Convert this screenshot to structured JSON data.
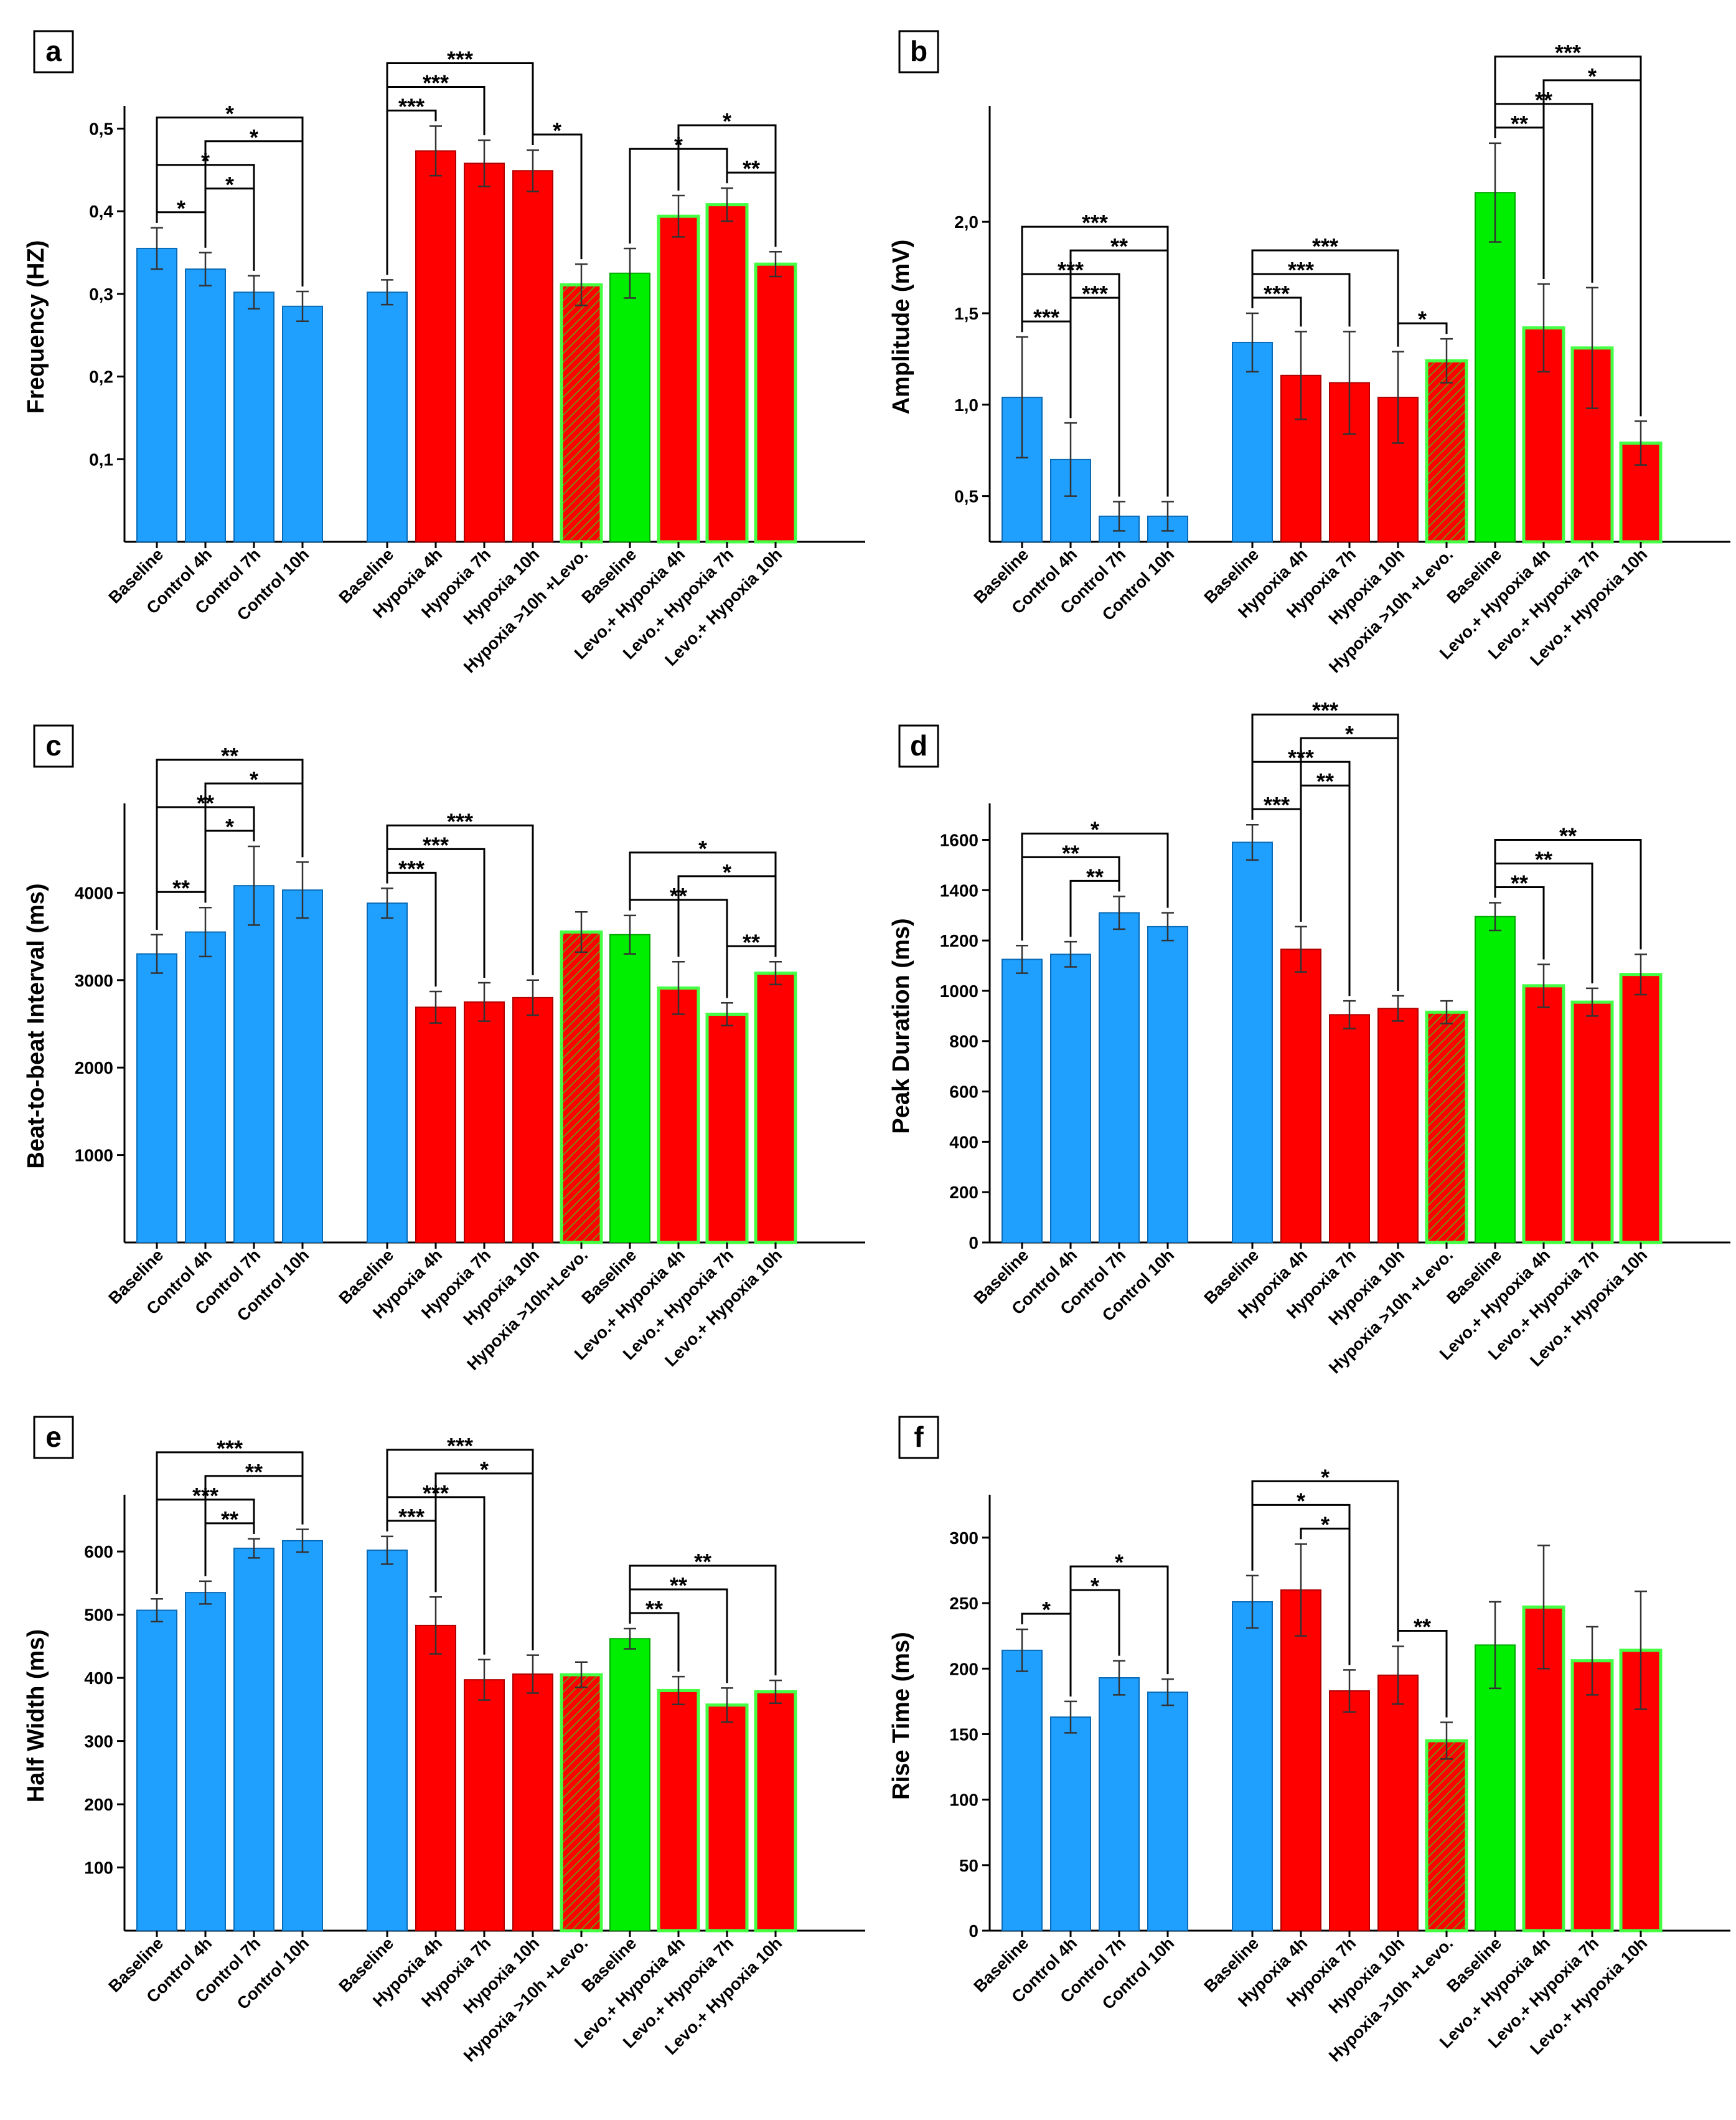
{
  "colors": {
    "control": "#1fa0ff",
    "hypoxia": "#ff0000",
    "levo_baseline": "#00ee00",
    "levo_outline": "#44ff44",
    "hatch": "#7a8a10",
    "axis": "#000000",
    "background": "#ffffff"
  },
  "chart_data": [
    {
      "panel": "a",
      "type": "bar",
      "ylabel": "Frequency (HZ)",
      "ylim": [
        0.0,
        0.52
      ],
      "yticks": [
        0.1,
        0.2,
        0.3,
        0.4,
        0.5
      ],
      "ytick_labels": [
        "0,1",
        "0,2",
        "0,3",
        "0,4",
        "0,5"
      ],
      "categories": [
        "Baseline",
        "Control 4h",
        "Control 7h",
        "Control 10h",
        "Baseline",
        "Hypoxia 4h",
        "Hypoxia 7h",
        "Hypoxia 10h",
        "Hypoxia >10h +Levo.",
        "Baseline",
        "Levo.+ Hypoxia 4h",
        "Levo.+ Hypoxia 7h",
        "Levo.+ Hypoxia 10h"
      ],
      "values": [
        0.355,
        0.33,
        0.302,
        0.285,
        0.302,
        0.473,
        0.458,
        0.449,
        0.311,
        0.325,
        0.394,
        0.408,
        0.336
      ],
      "errors": [
        0.025,
        0.02,
        0.02,
        0.018,
        0.015,
        0.03,
        0.028,
        0.025,
        0.025,
        0.03,
        0.025,
        0.02,
        0.015
      ],
      "brackets": [
        {
          "from": 0,
          "to": 1,
          "stars": "*"
        },
        {
          "from": 0,
          "to": 2,
          "stars": "*"
        },
        {
          "from": 0,
          "to": 3,
          "stars": "*"
        },
        {
          "from": 1,
          "to": 2,
          "stars": "*"
        },
        {
          "from": 1,
          "to": 3,
          "stars": "*"
        },
        {
          "from": 4,
          "to": 5,
          "stars": "***"
        },
        {
          "from": 4,
          "to": 6,
          "stars": "***"
        },
        {
          "from": 4,
          "to": 7,
          "stars": "***"
        },
        {
          "from": 7,
          "to": 8,
          "stars": "*"
        },
        {
          "from": 9,
          "to": 11,
          "stars": "*"
        },
        {
          "from": 10,
          "to": 12,
          "stars": "*"
        },
        {
          "from": 11,
          "to": 12,
          "stars": "**"
        }
      ]
    },
    {
      "panel": "b",
      "type": "bar",
      "ylabel": "Amplitude (mV)",
      "ylim": [
        0.25,
        2.6
      ],
      "yticks": [
        0.5,
        1.0,
        1.5,
        2.0
      ],
      "ytick_labels": [
        "0,5",
        "1,0",
        "1,5",
        "2,0"
      ],
      "categories": [
        "Baseline",
        "Control 4h",
        "Control 7h",
        "Control 10h",
        "Baseline",
        "Hypoxia 4h",
        "Hypoxia 7h",
        "Hypoxia 10h",
        "Hypoxia >10h +Levo.",
        "Baseline",
        "Levo.+ Hypoxia 4h",
        "Levo.+ Hypoxia 7h",
        "Levo.+ Hypoxia 10h"
      ],
      "values": [
        1.04,
        0.7,
        0.39,
        0.39,
        1.34,
        1.16,
        1.12,
        1.04,
        1.24,
        2.16,
        1.42,
        1.31,
        0.79
      ],
      "errors": [
        0.33,
        0.2,
        0.08,
        0.08,
        0.16,
        0.24,
        0.28,
        0.25,
        0.12,
        0.27,
        0.24,
        0.33,
        0.12
      ],
      "brackets": [
        {
          "from": 0,
          "to": 1,
          "stars": "***"
        },
        {
          "from": 0,
          "to": 2,
          "stars": "***"
        },
        {
          "from": 0,
          "to": 3,
          "stars": "***"
        },
        {
          "from": 1,
          "to": 2,
          "stars": "***"
        },
        {
          "from": 1,
          "to": 3,
          "stars": "**"
        },
        {
          "from": 4,
          "to": 5,
          "stars": "***"
        },
        {
          "from": 4,
          "to": 6,
          "stars": "***"
        },
        {
          "from": 4,
          "to": 7,
          "stars": "***"
        },
        {
          "from": 7,
          "to": 8,
          "stars": "*"
        },
        {
          "from": 9,
          "to": 10,
          "stars": "**"
        },
        {
          "from": 9,
          "to": 11,
          "stars": "**"
        },
        {
          "from": 9,
          "to": 12,
          "stars": "***"
        },
        {
          "from": 10,
          "to": 12,
          "stars": "*"
        }
      ]
    },
    {
      "panel": "c",
      "type": "bar",
      "ylabel": "Beat-to-beat Interval (ms)",
      "ylim": [
        0,
        4950
      ],
      "yticks": [
        1000,
        2000,
        3000,
        4000
      ],
      "ytick_labels": [
        "1000",
        "2000",
        "3000",
        "4000"
      ],
      "categories": [
        "Baseline",
        "Control 4h",
        "Control 7h",
        "Control 10h",
        "Baseline",
        "Hypoxia 4h",
        "Hypoxia 7h",
        "Hypoxia 10h",
        "Hypoxia >10h+Levo.",
        "Baseline",
        "Levo.+ Hypoxia 4h",
        "Levo.+ Hypoxia 7h",
        "Levo.+ Hypoxia 10h"
      ],
      "values": [
        3300,
        3550,
        4080,
        4030,
        3880,
        2690,
        2750,
        2800,
        3550,
        3520,
        2910,
        2610,
        3080
      ],
      "errors": [
        220,
        280,
        450,
        320,
        170,
        180,
        220,
        200,
        230,
        220,
        300,
        130,
        130
      ],
      "brackets": [
        {
          "from": 0,
          "to": 1,
          "stars": "**"
        },
        {
          "from": 0,
          "to": 2,
          "stars": "**"
        },
        {
          "from": 0,
          "to": 3,
          "stars": "**"
        },
        {
          "from": 1,
          "to": 2,
          "stars": "*"
        },
        {
          "from": 1,
          "to": 3,
          "stars": "*"
        },
        {
          "from": 4,
          "to": 5,
          "stars": "***"
        },
        {
          "from": 4,
          "to": 6,
          "stars": "***"
        },
        {
          "from": 4,
          "to": 7,
          "stars": "***"
        },
        {
          "from": 9,
          "to": 11,
          "stars": "**"
        },
        {
          "from": 9,
          "to": 12,
          "stars": "*"
        },
        {
          "from": 10,
          "to": 12,
          "stars": "*"
        },
        {
          "from": 11,
          "to": 12,
          "stars": "**"
        }
      ]
    },
    {
      "panel": "d",
      "type": "bar",
      "ylabel": "Peak Duration (ms)",
      "ylim": [
        0,
        1720
      ],
      "yticks": [
        0,
        200,
        400,
        600,
        800,
        1000,
        1200,
        1400,
        1600
      ],
      "ytick_labels": [
        "0",
        "200",
        "400",
        "600",
        "800",
        "1000",
        "1200",
        "1400",
        "1600"
      ],
      "categories": [
        "Baseline",
        "Control 4h",
        "Control 7h",
        "Control 10h",
        "Baseline",
        "Hypoxia 4h",
        "Hypoxia 7h",
        "Hypoxia 10h",
        "Hypoxia >10h +Levo.",
        "Baseline",
        "Levo.+ Hypoxia 4h",
        "Levo.+ Hypoxia 7h",
        "Levo.+ Hypoxia 10h"
      ],
      "values": [
        1125,
        1145,
        1310,
        1255,
        1590,
        1165,
        905,
        930,
        915,
        1295,
        1020,
        955,
        1065
      ],
      "errors": [
        55,
        50,
        65,
        55,
        70,
        90,
        55,
        50,
        45,
        55,
        85,
        55,
        80
      ],
      "brackets": [
        {
          "from": 0,
          "to": 2,
          "stars": "**"
        },
        {
          "from": 0,
          "to": 3,
          "stars": "*"
        },
        {
          "from": 1,
          "to": 2,
          "stars": "**"
        },
        {
          "from": 4,
          "to": 5,
          "stars": "***"
        },
        {
          "from": 4,
          "to": 6,
          "stars": "***"
        },
        {
          "from": 4,
          "to": 7,
          "stars": "***"
        },
        {
          "from": 5,
          "to": 6,
          "stars": "**"
        },
        {
          "from": 5,
          "to": 7,
          "stars": "*"
        },
        {
          "from": 9,
          "to": 10,
          "stars": "**"
        },
        {
          "from": 9,
          "to": 11,
          "stars": "**"
        },
        {
          "from": 9,
          "to": 12,
          "stars": "**"
        }
      ]
    },
    {
      "panel": "e",
      "type": "bar",
      "ylabel": "Half Width (ms)",
      "ylim": [
        0,
        680
      ],
      "yticks": [
        100,
        200,
        300,
        400,
        500,
        600
      ],
      "ytick_labels": [
        "100",
        "200",
        "300",
        "400",
        "500",
        "600"
      ],
      "categories": [
        "Baseline",
        "Control 4h",
        "Control 7h",
        "Control 10h",
        "Baseline",
        "Hypoxia 4h",
        "Hypoxia 7h",
        "Hypoxia 10h",
        "Hypoxia >10h +Levo.",
        "Baseline",
        "Levo.+ Hypoxia 4h",
        "Levo.+ Hypoxia 7h",
        "Levo.+ Hypoxia 10h"
      ],
      "values": [
        507,
        535,
        605,
        617,
        602,
        483,
        397,
        406,
        405,
        462,
        380,
        357,
        378
      ],
      "errors": [
        18,
        18,
        15,
        18,
        22,
        45,
        32,
        30,
        20,
        16,
        22,
        27,
        18
      ],
      "brackets": [
        {
          "from": 0,
          "to": 2,
          "stars": "***"
        },
        {
          "from": 0,
          "to": 3,
          "stars": "***"
        },
        {
          "from": 1,
          "to": 2,
          "stars": "**"
        },
        {
          "from": 1,
          "to": 3,
          "stars": "**"
        },
        {
          "from": 4,
          "to": 5,
          "stars": "***"
        },
        {
          "from": 4,
          "to": 6,
          "stars": "***"
        },
        {
          "from": 4,
          "to": 7,
          "stars": "***"
        },
        {
          "from": 5,
          "to": 7,
          "stars": "*"
        },
        {
          "from": 9,
          "to": 10,
          "stars": "**"
        },
        {
          "from": 9,
          "to": 11,
          "stars": "**"
        },
        {
          "from": 9,
          "to": 12,
          "stars": "**"
        }
      ]
    },
    {
      "panel": "f",
      "type": "bar",
      "ylabel": "Rise Time (ms)",
      "ylim": [
        0,
        328
      ],
      "yticks": [
        0,
        50,
        100,
        150,
        200,
        250,
        300
      ],
      "ytick_labels": [
        "0",
        "50",
        "100",
        "150",
        "200",
        "250",
        "300"
      ],
      "categories": [
        "Baseline",
        "Control 4h",
        "Control 7h",
        "Control 10h",
        "Baseline",
        "Hypoxia 4h",
        "Hypoxia 7h",
        "Hypoxia 10h",
        "Hypoxia >10h +Levo.",
        "Baseline",
        "Levo.+ Hypoxia 4h",
        "Levo.+ Hypoxia 7h",
        "Levo.+ Hypoxia 10h"
      ],
      "values": [
        214,
        163,
        193,
        182,
        251,
        260,
        183,
        195,
        145,
        218,
        247,
        206,
        214
      ],
      "errors": [
        16,
        12,
        13,
        10,
        20,
        35,
        16,
        22,
        14,
        33,
        47,
        26,
        45
      ],
      "brackets": [
        {
          "from": 0,
          "to": 1,
          "stars": "*"
        },
        {
          "from": 1,
          "to": 2,
          "stars": "*"
        },
        {
          "from": 1,
          "to": 3,
          "stars": "*"
        },
        {
          "from": 4,
          "to": 6,
          "stars": "*"
        },
        {
          "from": 4,
          "to": 7,
          "stars": "*"
        },
        {
          "from": 5,
          "to": 6,
          "stars": "*"
        },
        {
          "from": 7,
          "to": 8,
          "stars": "**"
        }
      ]
    }
  ]
}
